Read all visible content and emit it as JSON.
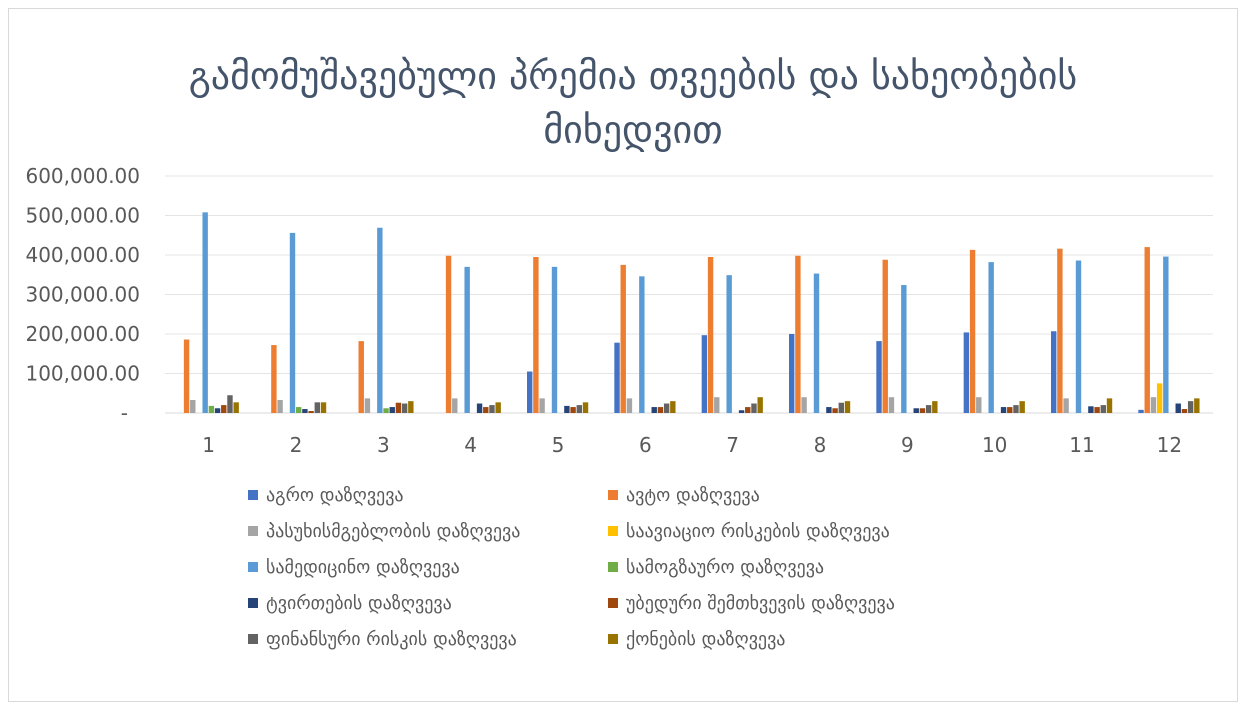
{
  "chart_data": {
    "type": "bar",
    "title": "გამომუშავებული პრემია თვეების და სახეობების მიხედვით",
    "xlabel": "",
    "ylabel": "",
    "ylim": [
      0,
      600000
    ],
    "yticks": [
      0,
      100000,
      200000,
      300000,
      400000,
      500000,
      600000
    ],
    "ytick_labels": [
      "-",
      "100,000.00",
      "200,000.00",
      "300,000.00",
      "400,000.00",
      "500,000.00",
      "600,000.00"
    ],
    "grid": true,
    "legend_position": "bottom",
    "categories": [
      "1",
      "2",
      "3",
      "4",
      "5",
      "6",
      "7",
      "8",
      "9",
      "10",
      "11",
      "12"
    ],
    "series": [
      {
        "name": "აგრო დაზღვევა",
        "color": "#4472c4",
        "values": [
          0,
          0,
          0,
          0,
          105000,
          178000,
          197000,
          200000,
          182000,
          204000,
          207000,
          8000
        ]
      },
      {
        "name": "ავტო დაზღვევა",
        "color": "#ed7d31",
        "values": [
          186000,
          172000,
          182000,
          398000,
          395000,
          375000,
          395000,
          398000,
          388000,
          413000,
          416000,
          420000
        ]
      },
      {
        "name": "პასუხისმგებლობის დაზღვევა",
        "color": "#a5a5a5",
        "values": [
          33000,
          33000,
          37000,
          37000,
          37000,
          37000,
          40000,
          40000,
          40000,
          40000,
          37000,
          40000
        ]
      },
      {
        "name": "საავიაციო რისკების დაზღვევა",
        "color": "#ffc000",
        "values": [
          0,
          0,
          0,
          0,
          0,
          0,
          0,
          0,
          0,
          0,
          0,
          75000
        ]
      },
      {
        "name": "სამედიცინო დაზღვევა",
        "color": "#5b9bd5",
        "values": [
          508000,
          456000,
          469000,
          370000,
          370000,
          346000,
          349000,
          353000,
          324000,
          382000,
          386000,
          396000
        ]
      },
      {
        "name": "სამოგზაურო დაზღვევა",
        "color": "#70ad47",
        "values": [
          18000,
          15000,
          12000,
          0,
          0,
          0,
          0,
          0,
          0,
          0,
          0,
          0
        ]
      },
      {
        "name": "ტვირთების დაზღვევა",
        "color": "#264478",
        "values": [
          12000,
          10000,
          15000,
          24000,
          18000,
          15000,
          7000,
          15000,
          12000,
          15000,
          17000,
          24000
        ]
      },
      {
        "name": "უბედური შემთხვევის დაზღვევა",
        "color": "#9e480e",
        "values": [
          20000,
          5000,
          26000,
          15000,
          15000,
          15000,
          15000,
          12000,
          12000,
          15000,
          15000,
          10000
        ]
      },
      {
        "name": "ფინანსური რისკის დაზღვევა",
        "color": "#636363",
        "values": [
          45000,
          27000,
          24000,
          20000,
          20000,
          24000,
          24000,
          26000,
          20000,
          20000,
          20000,
          30000
        ]
      },
      {
        "name": "ქონების დაზღვევა",
        "color": "#997300",
        "values": [
          27000,
          27000,
          30000,
          27000,
          27000,
          30000,
          40000,
          30000,
          30000,
          30000,
          37000,
          37000
        ]
      }
    ]
  }
}
